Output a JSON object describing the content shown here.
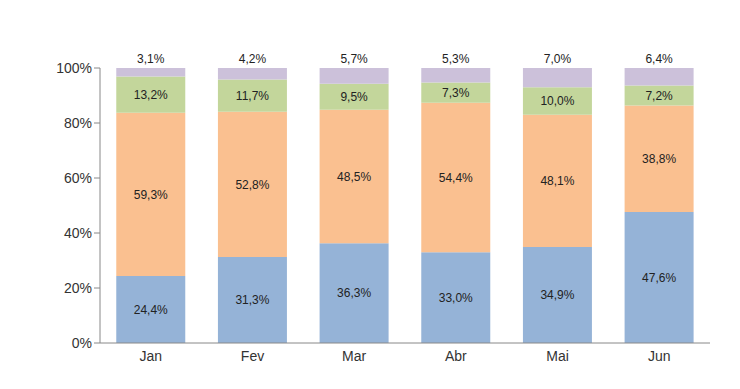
{
  "chart_data": {
    "type": "bar",
    "stacked": true,
    "data_labels": true,
    "grid": false,
    "categories": [
      "Jan",
      "Fev",
      "Mar",
      "Abr",
      "Mai",
      "Jun"
    ],
    "ylim": [
      0,
      100
    ],
    "yticks": [
      {
        "value": 0,
        "label": "0%"
      },
      {
        "value": 20,
        "label": "20%"
      },
      {
        "value": 40,
        "label": "40%"
      },
      {
        "value": 60,
        "label": "60%"
      },
      {
        "value": 80,
        "label": "80%"
      },
      {
        "value": 100,
        "label": "100%"
      }
    ],
    "series": [
      {
        "color": "#95b3d7",
        "values": [
          24.4,
          31.3,
          36.3,
          33.0,
          34.9,
          47.6
        ],
        "value_labels": [
          "24,4%",
          "31,3%",
          "36,3%",
          "33,0%",
          "34,9%",
          "47,6%"
        ]
      },
      {
        "color": "#fac090",
        "values": [
          59.3,
          52.8,
          48.5,
          54.4,
          48.1,
          38.8
        ],
        "value_labels": [
          "59,3%",
          "52,8%",
          "48,5%",
          "54,4%",
          "48,1%",
          "38,8%"
        ]
      },
      {
        "color": "#c3d69b",
        "values": [
          13.2,
          11.7,
          9.5,
          7.3,
          10.0,
          7.2
        ],
        "value_labels": [
          "13,2%",
          "11,7%",
          "9,5%",
          "7,3%",
          "10,0%",
          "7,2%"
        ]
      },
      {
        "color": "#ccc1da",
        "values": [
          3.1,
          4.2,
          5.7,
          5.3,
          7.0,
          6.4
        ],
        "value_labels": [
          "3,1%",
          "4,2%",
          "5,7%",
          "5,3%",
          "7,0%",
          "6,4%"
        ]
      }
    ]
  }
}
